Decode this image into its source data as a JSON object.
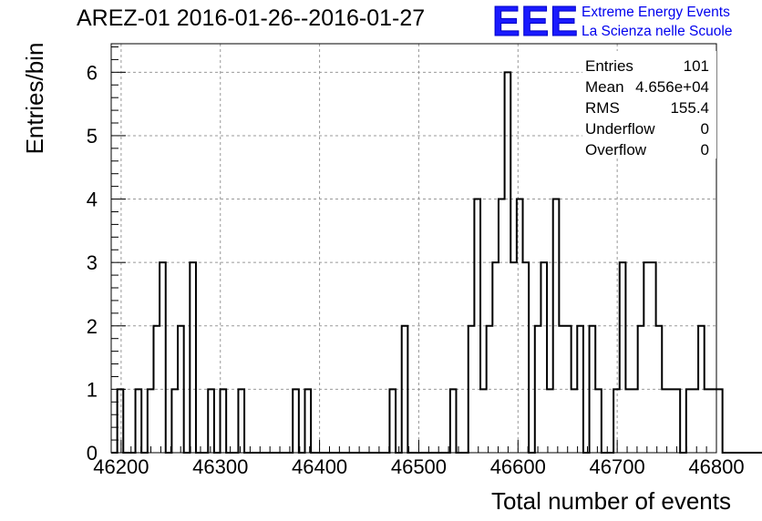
{
  "header": {
    "title": "AREZ-01 2016-01-26--2016-01-27"
  },
  "logo": {
    "mark": "EEE",
    "line1": "Extreme Energy Events",
    "line2": "La Scienza nelle Scuole"
  },
  "stats": [
    {
      "label": "Entries",
      "value": "101"
    },
    {
      "label": "Mean",
      "value": "4.656e+04"
    },
    {
      "label": "RMS",
      "value": "155.4"
    },
    {
      "label": "Underflow",
      "value": "0"
    },
    {
      "label": "Overflow",
      "value": "0"
    }
  ],
  "chart_data": {
    "type": "histogram",
    "title": "AREZ-01 2016-01-26--2016-01-27",
    "xlabel": "Total number of events",
    "ylabel": "Entries/bin",
    "xlim": [
      46190,
      46800
    ],
    "ylim": [
      0,
      6.45
    ],
    "bin_width": 6.1,
    "bin_start": 46190,
    "xticks": [
      46200,
      46300,
      46400,
      46500,
      46600,
      46700,
      46800
    ],
    "yticks": [
      0,
      1,
      2,
      3,
      4,
      5,
      6
    ],
    "grid": true,
    "line_color": "#000000",
    "counts": [
      0,
      1,
      0,
      0,
      1,
      0,
      1,
      2,
      3,
      0,
      1,
      2,
      0,
      3,
      0,
      0,
      1,
      0,
      1,
      0,
      0,
      1,
      0,
      0,
      0,
      0,
      0,
      0,
      0,
      0,
      1,
      0,
      1,
      0,
      0,
      0,
      0,
      0,
      0,
      0,
      0,
      0,
      0,
      0,
      0,
      0,
      1,
      0,
      2,
      0,
      0,
      0,
      0,
      0,
      0,
      0,
      1,
      0,
      0,
      2,
      4,
      1,
      2,
      3,
      4,
      6,
      3,
      4,
      3,
      0,
      2,
      3,
      1,
      4,
      2,
      2,
      1,
      2,
      0,
      2,
      1,
      0,
      0,
      1,
      3,
      1,
      1,
      2,
      3,
      3,
      2,
      1,
      1,
      1,
      0,
      1,
      1,
      2,
      1,
      1,
      1,
      0,
      0,
      0,
      0,
      0,
      0,
      0,
      0,
      0
    ]
  }
}
